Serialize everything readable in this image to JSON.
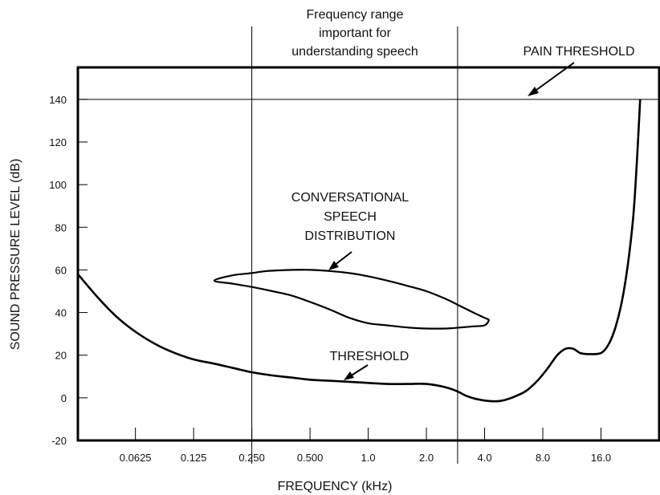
{
  "chart_data": {
    "type": "line",
    "title": "",
    "xlabel": "FREQUENCY (kHz)",
    "ylabel": "SOUND PRESSURE LEVEL (dB)",
    "x_scale": "log2",
    "xlim": [
      0.0315,
      32
    ],
    "ylim": [
      -20,
      155
    ],
    "grid": false,
    "x_ticks": [
      0.0625,
      0.125,
      0.25,
      0.5,
      1.0,
      2.0,
      4.0,
      8.0,
      16.0
    ],
    "x_tick_labels": [
      "0.0625",
      "0.125",
      "0.250",
      "0.500",
      "1.0",
      "2.0",
      "4.0",
      "8.0",
      "16.0"
    ],
    "y_ticks": [
      -20,
      0,
      20,
      40,
      60,
      80,
      100,
      120,
      140
    ],
    "y_tick_labels": [
      "-20",
      "0",
      "20",
      "40",
      "60",
      "80",
      "100",
      "120",
      "140"
    ],
    "speech_band": {
      "x_range": [
        0.25,
        2.9
      ],
      "label_lines": [
        "Frequency range",
        "important for",
        "understanding speech"
      ]
    },
    "pain_threshold": {
      "y": 140,
      "label": "PAIN THRESHOLD"
    },
    "threshold": {
      "label": "THRESHOLD",
      "x": [
        0.0315,
        0.04,
        0.05,
        0.0625,
        0.08,
        0.1,
        0.125,
        0.16,
        0.2,
        0.25,
        0.32,
        0.4,
        0.5,
        0.63,
        0.8,
        1.0,
        1.25,
        1.6,
        2.0,
        2.5,
        2.9,
        3.2,
        3.6,
        4.2,
        4.8,
        5.5,
        6.5,
        7.5,
        8.5,
        9.5,
        10.5,
        11.5,
        12.5,
        14.0,
        16.0,
        17.5,
        19.0,
        20.5,
        22.0,
        23.5,
        24.5,
        25.5
      ],
      "y": [
        58,
        47,
        38,
        31,
        25,
        21,
        18,
        16,
        14,
        12,
        10.5,
        9.5,
        8.5,
        8,
        7.5,
        7,
        6.5,
        6.5,
        6.5,
        5,
        3,
        1,
        -0.5,
        -1.5,
        -1.5,
        0,
        3,
        8,
        14,
        20,
        23,
        23,
        21,
        20.5,
        21,
        25,
        33,
        45,
        62,
        85,
        110,
        140
      ]
    },
    "speech_distribution": {
      "label_lines": [
        "CONVERSATIONAL",
        "SPEECH",
        "DISTRIBUTION"
      ],
      "x": [
        0.16,
        0.2,
        0.25,
        0.3,
        0.4,
        0.5,
        0.63,
        0.8,
        1.0,
        1.25,
        1.6,
        2.0,
        2.5,
        3.0,
        3.5,
        4.0,
        4.2,
        4.0,
        3.5,
        3.0,
        2.5,
        2.0,
        1.6,
        1.25,
        1.0,
        0.8,
        0.63,
        0.5,
        0.4,
        0.32,
        0.25,
        0.2,
        0.16
      ],
      "y": [
        55,
        57.5,
        58.5,
        59.5,
        60,
        60,
        59.5,
        58.5,
        57,
        55,
        52.5,
        50,
        46.5,
        43,
        40,
        37.5,
        36.5,
        34,
        33.5,
        33,
        32.5,
        32.5,
        33,
        34,
        35,
        37.5,
        41.5,
        45,
        48,
        50,
        52,
        53.5,
        55
      ]
    }
  }
}
